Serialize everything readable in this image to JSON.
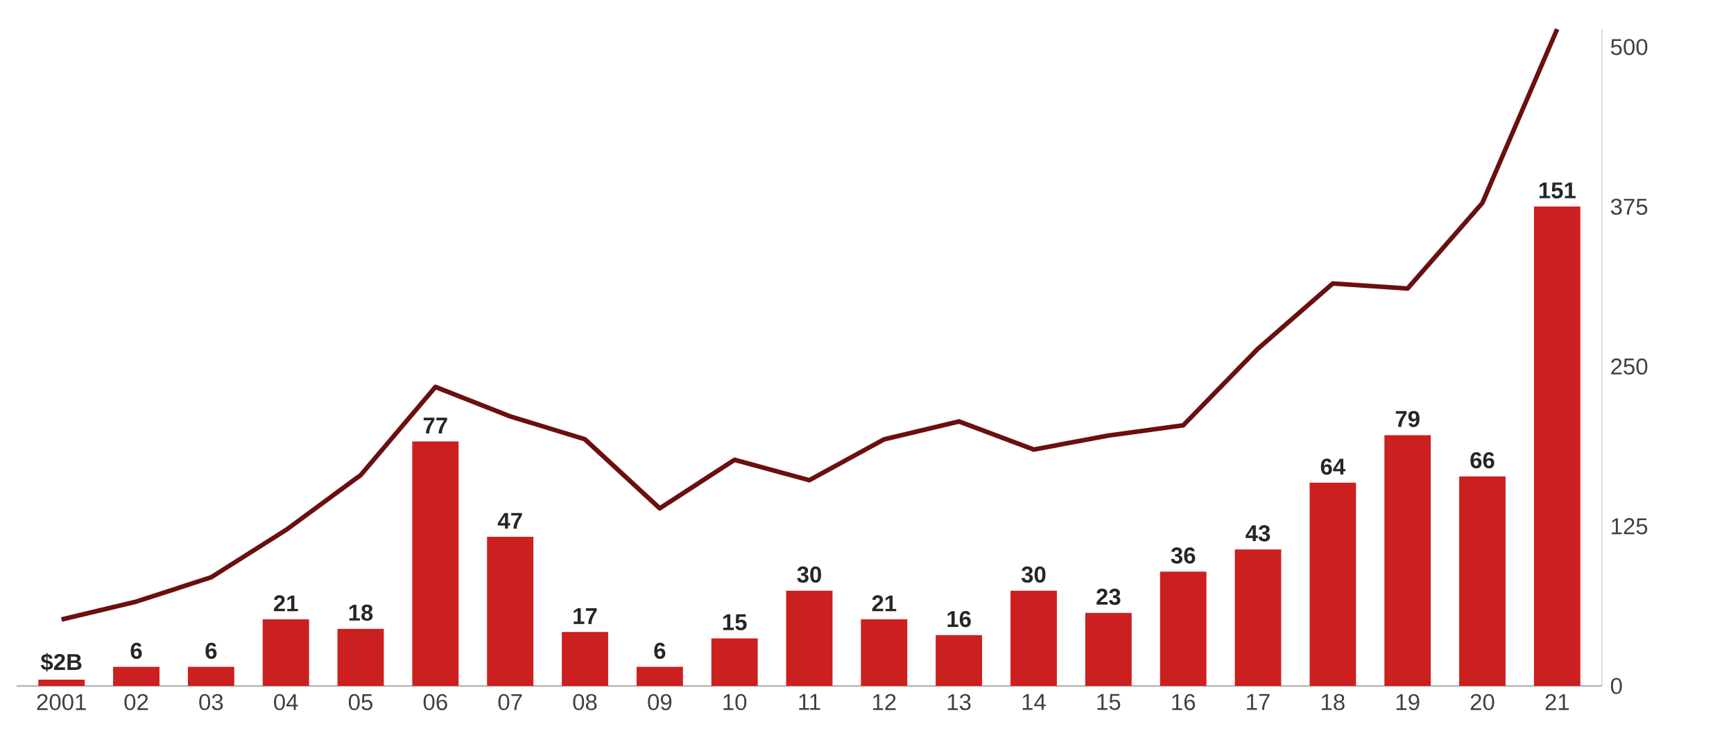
{
  "chart_data": {
    "type": "bar",
    "categories": [
      "2001",
      "02",
      "03",
      "04",
      "05",
      "06",
      "07",
      "08",
      "09",
      "10",
      "11",
      "12",
      "13",
      "14",
      "15",
      "16",
      "17",
      "18",
      "19",
      "20",
      "21"
    ],
    "y2lim": [
      0,
      514
    ],
    "y2ticks": [
      0,
      125,
      250,
      375,
      500
    ],
    "grid": false,
    "marker": "none",
    "series": [
      {
        "color": "#cc1f1f",
        "values": [
          2,
          6,
          6,
          21,
          18,
          77,
          47,
          17,
          6,
          15,
          30,
          21,
          16,
          30,
          23,
          36,
          43,
          64,
          79,
          66,
          151
        ],
        "value_labels": [
          "$2B",
          "6",
          "6",
          "21",
          "18",
          "77",
          "47",
          "17",
          "6",
          "15",
          "30",
          "21",
          "16",
          "30",
          "23",
          "36",
          "43",
          "64",
          "79",
          "66",
          "151"
        ]
      },
      {
        "type": "line",
        "axis": "y2",
        "color": "#6b0f0f",
        "values": [
          52,
          66,
          85,
          122,
          165,
          234,
          211,
          193,
          139,
          177,
          161,
          193,
          207,
          185,
          196,
          204,
          264,
          315,
          311,
          378,
          514
        ]
      }
    ]
  }
}
